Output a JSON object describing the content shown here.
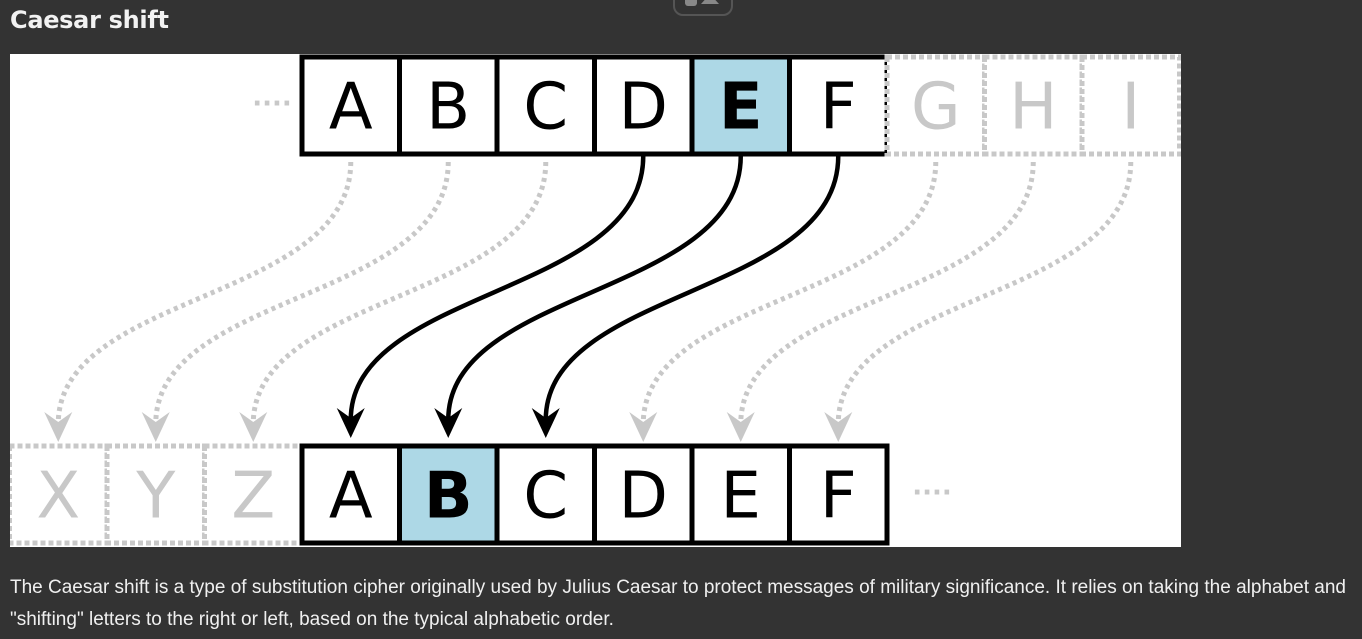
{
  "title": "Caesar shift",
  "caption": "The Caesar shift is a type of substitution cipher originally used by Julius Caesar to protect messages of military significance. It relies on taking the alphabet and \"shifting\" letters to the right or left, based on the typical alphabetic order.",
  "diagram": {
    "plain_row": {
      "ellipsis_before": "····",
      "letters": [
        "A",
        "B",
        "C",
        "D",
        "E",
        "F"
      ],
      "highlight": "E",
      "faded_letters": [
        "G",
        "H",
        "I"
      ]
    },
    "cipher_row": {
      "faded_letters": [
        "X",
        "Y",
        "Z"
      ],
      "letters": [
        "A",
        "B",
        "C",
        "D",
        "E",
        "F"
      ],
      "highlight": "B",
      "ellipsis_after": "····"
    },
    "shift": 3,
    "colors": {
      "highlight": "#add8e6",
      "solid": "#000000",
      "faded": "#c8c8c8"
    }
  }
}
